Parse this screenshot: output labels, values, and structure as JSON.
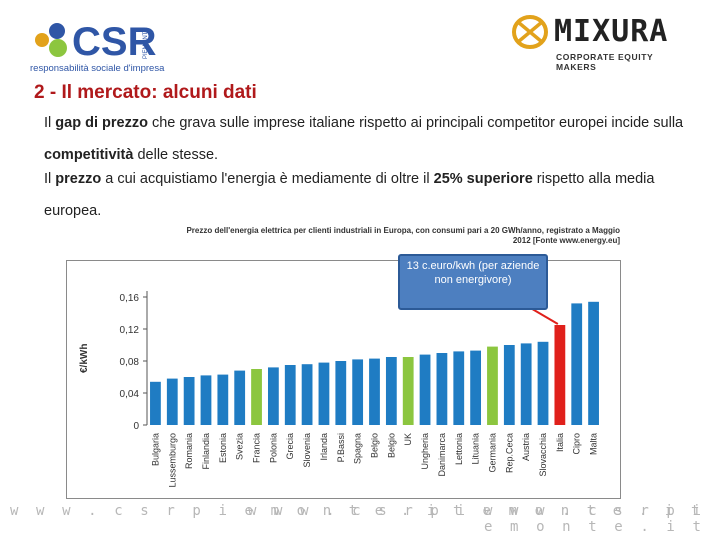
{
  "header": {
    "csr_logo_text": "CSR",
    "csr_logo_side": "PIEMONTE",
    "csr_tagline": "responsabilità sociale d'impresa",
    "mixura_name": "MIXURA",
    "mixura_tagline": "CORPORATE EQUITY MAKERS"
  },
  "slide": {
    "title": "2 - Il mercato: alcuni dati",
    "p1": [
      {
        "text": "Il ",
        "bold": false
      },
      {
        "text": "gap di prezzo",
        "bold": true
      },
      {
        "text": " che grava sulle imprese italiane rispetto ai principali competitor europei incide sulla ",
        "bold": false
      },
      {
        "text": "competitività",
        "bold": true
      },
      {
        "text": " delle stesse.",
        "bold": false
      }
    ],
    "p2": [
      {
        "text": "Il ",
        "bold": false
      },
      {
        "text": "prezzo",
        "bold": true
      },
      {
        "text": " a cui acquistiamo l'energia è mediamente di oltre il ",
        "bold": false
      },
      {
        "text": "25% superiore",
        "bold": true
      },
      {
        "text": " rispetto alla media europea.",
        "bold": false
      }
    ],
    "callout": "13 c.euro/kwh (per aziende non energivore)"
  },
  "chart_data": {
    "type": "bar",
    "title": "Prezzo dell'energia elettrica per clienti industriali in Europa, con consumi pari a 20 GWh/anno, registrato a Maggio 2012 [Fonte www.energy.eu]",
    "ylabel": "€/kWh",
    "ylim": [
      0,
      0.16
    ],
    "yticks": [
      "0",
      "0,04",
      "0,08",
      "0,12",
      "0,16"
    ],
    "ytick_values": [
      0,
      0.04,
      0.08,
      0.12,
      0.16
    ],
    "grid": false,
    "categories": [
      "Bulgaria",
      "Lussemburgo",
      "Romania",
      "Finlandia",
      "Estonia",
      "Svezia",
      "Francia",
      "Polonia",
      "Grecia",
      "Slovenia",
      "Irlanda",
      "P.Bassi",
      "Spagna",
      "Belgio",
      "Belgio",
      "UK",
      "Ungheria",
      "Danimarca",
      "Lettonia",
      "Lituania",
      "Germania",
      "Rep.Ceca",
      "Austria",
      "Slovacchia",
      "Italia",
      "Cipro",
      "Malta"
    ],
    "values": [
      0.054,
      0.058,
      0.06,
      0.062,
      0.063,
      0.068,
      0.07,
      0.072,
      0.075,
      0.076,
      0.078,
      0.08,
      0.082,
      0.083,
      0.085,
      0.085,
      0.088,
      0.09,
      0.092,
      0.093,
      0.098,
      0.1,
      0.102,
      0.104,
      0.125,
      0.152,
      0.154
    ],
    "highlight": {
      "Francia": "#8cc63f",
      "UK": "#8cc63f",
      "Germania": "#8cc63f",
      "Italia": "#e0201b"
    },
    "bar_color": "#1f7cc3"
  },
  "footer": {
    "url_text": "w w w . c s r p i e m o n t e . i t"
  },
  "colors": {
    "title_red": "#b0191b",
    "bar_blue": "#1f7cc3",
    "bar_green": "#8cc63f",
    "bar_red": "#e0201b",
    "callout_blue": "#4d7fc0"
  }
}
